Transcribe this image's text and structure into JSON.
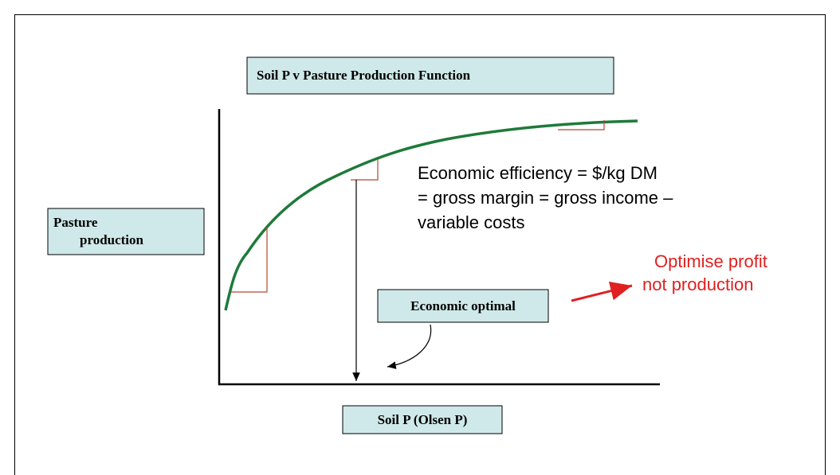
{
  "title": "Soil P v Pasture Production Function",
  "y_label": [
    "Pasture",
    "production"
  ],
  "x_label": "Soil P (Olsen P)",
  "optimum_label": "Economic optimal",
  "efficiency_note": [
    "Economic efficiency = $/kg DM",
    "= gross margin = gross income –",
    "variable costs"
  ],
  "callout": [
    "Optimise profit",
    "not production"
  ]
}
